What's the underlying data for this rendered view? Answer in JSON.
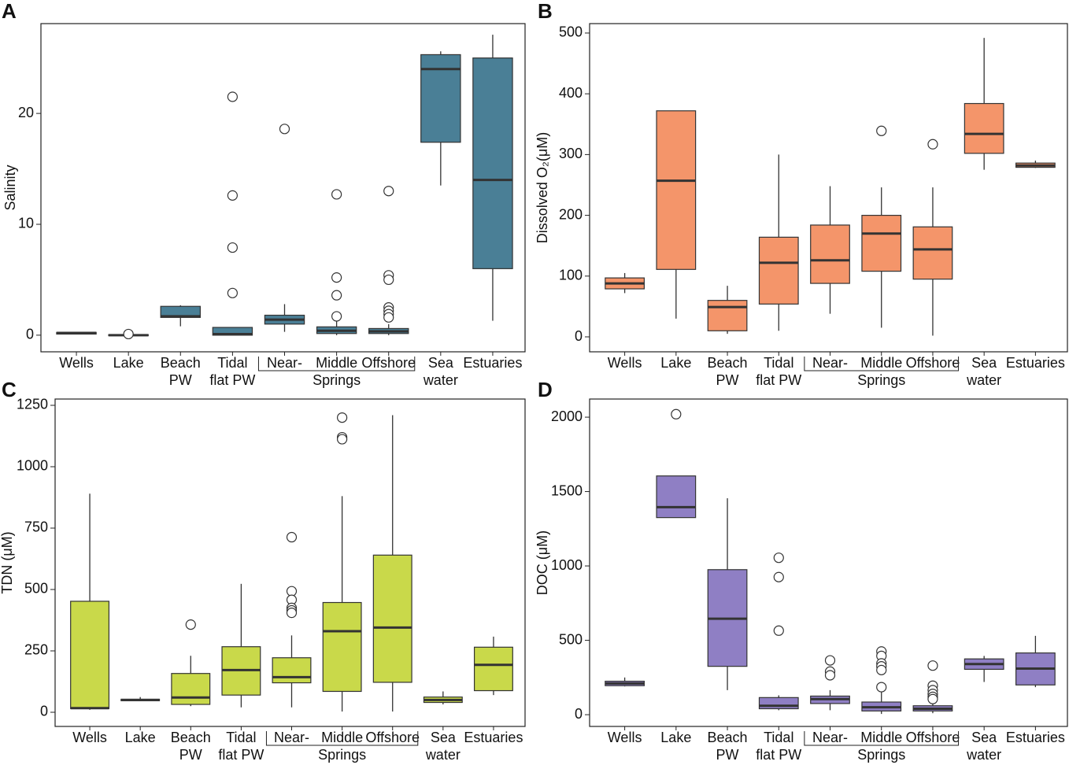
{
  "chart_data": [
    {
      "type": "box",
      "label": "A",
      "ylabel": "Salinity",
      "color": "#4a7f96",
      "categories": [
        [
          "Wells"
        ],
        [
          "Lake"
        ],
        [
          "Beach",
          "PW"
        ],
        [
          "Tidal",
          "flat PW"
        ],
        [
          "Near-"
        ],
        [
          "Middle"
        ],
        [
          "Offshore"
        ],
        [
          "Sea",
          "water"
        ],
        [
          "Estuaries"
        ]
      ],
      "group_label": "Springs",
      "ylim": [
        -1.5,
        28.1
      ],
      "yticks": [
        0,
        10,
        20
      ],
      "boxes": [
        {
          "min": 0.1,
          "q1": 0.1,
          "median": 0.2,
          "q3": 0.25,
          "max": 0.3,
          "outliers": []
        },
        {
          "min": -0.05,
          "q1": -0.05,
          "median": 0,
          "q3": 0.05,
          "max": 0.05,
          "outliers": [
            0.1
          ]
        },
        {
          "min": 0.8,
          "q1": 1.6,
          "median": 1.7,
          "q3": 2.6,
          "max": 2.7,
          "outliers": []
        },
        {
          "min": 0,
          "q1": 0,
          "median": 0.1,
          "q3": 0.7,
          "max": 0.7,
          "outliers": [
            21.5,
            12.6,
            7.9,
            3.8
          ]
        },
        {
          "min": 0.3,
          "q1": 1.0,
          "median": 1.4,
          "q3": 1.8,
          "max": 2.8,
          "outliers": [
            18.6
          ]
        },
        {
          "min": 0,
          "q1": 0.15,
          "median": 0.4,
          "q3": 0.75,
          "max": 1.3,
          "outliers": [
            12.7,
            5.2,
            3.6,
            1.7
          ]
        },
        {
          "min": 0,
          "q1": 0.15,
          "median": 0.35,
          "q3": 0.6,
          "max": 1.0,
          "outliers": [
            13.0,
            5.4,
            5.0,
            2.5,
            2.2,
            1.9,
            1.6
          ]
        },
        {
          "min": 13.5,
          "q1": 17.4,
          "median": 24.0,
          "q3": 25.3,
          "max": 25.6,
          "outliers": []
        },
        {
          "min": 1.3,
          "q1": 6.0,
          "median": 14.0,
          "q3": 25.0,
          "max": 27.1,
          "outliers": []
        }
      ]
    },
    {
      "type": "box",
      "label": "B",
      "ylabel": "Dissolved O₂(μM)",
      "color": "#f4956a",
      "categories": [
        [
          "Wells"
        ],
        [
          "Lake"
        ],
        [
          "Beach",
          "PW"
        ],
        [
          "Tidal",
          "flat PW"
        ],
        [
          "Near-"
        ],
        [
          "Middle"
        ],
        [
          "Offshore"
        ],
        [
          "Sea",
          "water"
        ],
        [
          "Estuaries"
        ]
      ],
      "group_label": "Springs",
      "ylim": [
        -24.6,
        515.5
      ],
      "yticks": [
        0,
        100,
        200,
        300,
        400,
        500
      ],
      "boxes": [
        {
          "min": 72,
          "q1": 79,
          "median": 88,
          "q3": 97,
          "max": 105,
          "outliers": []
        },
        {
          "min": 30,
          "q1": 111,
          "median": 257,
          "q3": 372,
          "max": 372,
          "outliers": []
        },
        {
          "min": 5,
          "q1": 10,
          "median": 49,
          "q3": 60,
          "max": 84,
          "outliers": []
        },
        {
          "min": 10,
          "q1": 54,
          "median": 122,
          "q3": 164,
          "max": 300,
          "outliers": []
        },
        {
          "min": 38,
          "q1": 88,
          "median": 126,
          "q3": 184,
          "max": 248,
          "outliers": []
        },
        {
          "min": 15,
          "q1": 108,
          "median": 170,
          "q3": 200,
          "max": 246,
          "outliers": [
            339
          ]
        },
        {
          "min": 2,
          "q1": 95,
          "median": 144,
          "q3": 181,
          "max": 246,
          "outliers": [
            317
          ]
        },
        {
          "min": 275,
          "q1": 302,
          "median": 334,
          "q3": 384,
          "max": 492,
          "outliers": []
        },
        {
          "min": 278,
          "q1": 279,
          "median": 282,
          "q3": 286,
          "max": 290,
          "outliers": []
        }
      ]
    },
    {
      "type": "box",
      "label": "C",
      "ylabel": "TDN (μM)",
      "color": "#c9d94a",
      "categories": [
        [
          "Wells"
        ],
        [
          "Lake"
        ],
        [
          "Beach",
          "PW"
        ],
        [
          "Tidal",
          "flat PW"
        ],
        [
          "Near-"
        ],
        [
          "Middle"
        ],
        [
          "Offshore"
        ],
        [
          "Sea",
          "water"
        ],
        [
          "Estuaries"
        ]
      ],
      "group_label": "Springs",
      "ylim": [
        -57.7,
        1275.6
      ],
      "yticks": [
        0,
        250,
        500,
        750,
        1000,
        1250
      ],
      "boxes": [
        {
          "min": 10,
          "q1": 15,
          "median": 17,
          "q3": 452,
          "max": 890,
          "outliers": []
        },
        {
          "min": 45,
          "q1": 47,
          "median": 50,
          "q3": 53,
          "max": 62,
          "outliers": []
        },
        {
          "min": 25,
          "q1": 32,
          "median": 60,
          "q3": 158,
          "max": 230,
          "outliers": [
            357
          ]
        },
        {
          "min": 20,
          "q1": 70,
          "median": 172,
          "q3": 267,
          "max": 523,
          "outliers": []
        },
        {
          "min": 20,
          "q1": 120,
          "median": 143,
          "q3": 222,
          "max": 313,
          "outliers": [
            713,
            493,
            458,
            425,
            415,
            405
          ]
        },
        {
          "min": 3,
          "q1": 85,
          "median": 330,
          "q3": 447,
          "max": 880,
          "outliers": [
            1200,
            1120,
            1112
          ]
        },
        {
          "min": 3,
          "q1": 122,
          "median": 345,
          "q3": 640,
          "max": 1210,
          "outliers": []
        },
        {
          "min": 32,
          "q1": 40,
          "median": 50,
          "q3": 62,
          "max": 85,
          "outliers": []
        },
        {
          "min": 70,
          "q1": 88,
          "median": 193,
          "q3": 265,
          "max": 308,
          "outliers": []
        }
      ]
    },
    {
      "type": "box",
      "label": "D",
      "ylabel": "DOC (μM)",
      "color": "#8f7fc4",
      "categories": [
        [
          "Wells"
        ],
        [
          "Lake"
        ],
        [
          "Beach",
          "PW"
        ],
        [
          "Tidal",
          "flat PW"
        ],
        [
          "Near-"
        ],
        [
          "Middle"
        ],
        [
          "Offshore"
        ],
        [
          "Sea",
          "water"
        ],
        [
          "Estuaries"
        ]
      ],
      "group_label": "Springs",
      "ylim": [
        -79,
        2122
      ],
      "yticks": [
        0,
        500,
        1000,
        1500,
        2000
      ],
      "boxes": [
        {
          "min": 190,
          "q1": 195,
          "median": 210,
          "q3": 225,
          "max": 250,
          "outliers": []
        },
        {
          "min": 1325,
          "q1": 1325,
          "median": 1395,
          "q3": 1605,
          "max": 1605,
          "outliers": [
            2020
          ]
        },
        {
          "min": 165,
          "q1": 325,
          "median": 645,
          "q3": 975,
          "max": 1455,
          "outliers": []
        },
        {
          "min": 30,
          "q1": 40,
          "median": 60,
          "q3": 115,
          "max": 130,
          "outliers": [
            1055,
            925,
            565
          ]
        },
        {
          "min": 30,
          "q1": 75,
          "median": 105,
          "q3": 125,
          "max": 165,
          "outliers": [
            365,
            290,
            265
          ]
        },
        {
          "min": 5,
          "q1": 25,
          "median": 50,
          "q3": 85,
          "max": 165,
          "outliers": [
            425,
            395,
            345,
            325,
            300,
            185
          ]
        },
        {
          "min": 10,
          "q1": 25,
          "median": 40,
          "q3": 60,
          "max": 85,
          "outliers": [
            330,
            195,
            165,
            140,
            120,
            105
          ]
        },
        {
          "min": 220,
          "q1": 305,
          "median": 340,
          "q3": 375,
          "max": 395,
          "outliers": []
        },
        {
          "min": 185,
          "q1": 200,
          "median": 310,
          "q3": 415,
          "max": 530,
          "outliers": []
        }
      ]
    }
  ]
}
